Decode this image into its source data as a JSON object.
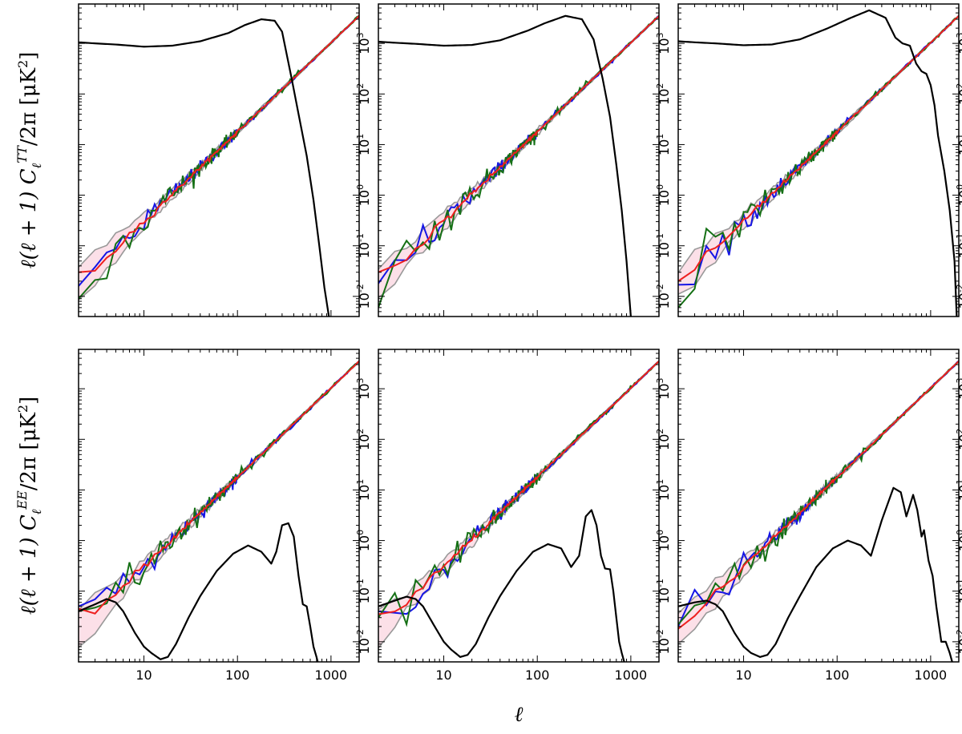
{
  "chart_data": {
    "type": "line",
    "layout": "2x3 grid",
    "xscale": "log",
    "yscale": "log",
    "xlim": [
      2,
      2000
    ],
    "ylim": [
      0.004,
      6000
    ],
    "xlabel": "ℓ",
    "x_ticks": [
      "10",
      "100",
      "1000"
    ],
    "y_ticks": [
      "10-2",
      "10-1",
      "100",
      "101",
      "102",
      "103"
    ],
    "y_tick_values": [
      0.01,
      0.1,
      1,
      10,
      100,
      1000
    ],
    "rows": [
      {
        "ylabel": "ℓ(ℓ+1) C_ℓ^TT / 2π [μK²]",
        "ylabel_parts": {
          "pre": "ℓ(ℓ + 1) C",
          "sub": "ℓ",
          "sup": "TT",
          "post": "/2π [μK",
          "exp": "2",
          "close": "]"
        }
      },
      {
        "ylabel": "ℓ(ℓ+1) C_ℓ^EE / 2π [μK²]",
        "ylabel_parts": {
          "pre": "ℓ(ℓ + 1) C",
          "sub": "ℓ",
          "sup": "EE",
          "post": "/2π [μK",
          "exp": "2",
          "close": "]"
        }
      }
    ],
    "noise_power_law": {
      "amplitude_at_l2": 0.018,
      "amplitude_at_l2000": 3500
    },
    "series_colors": {
      "blue": "#1515e6",
      "green": "#157015",
      "red": "#ee2020",
      "gray": "#999999",
      "black": "#000000",
      "band": "#fbd6e0"
    },
    "panels": [
      {
        "black_curve": {
          "x": [
            2,
            3,
            5,
            10,
            20,
            40,
            80,
            120,
            180,
            250,
            300,
            380,
            450,
            550,
            650,
            750,
            850,
            950
          ],
          "y": [
            1050,
            1000,
            950,
            860,
            900,
            1100,
            1600,
            2300,
            3000,
            2800,
            1700,
            200,
            40,
            6,
            0.8,
            0.1,
            0.015,
            0.004
          ]
        },
        "low_l_start": [
          0.016,
          0.03,
          0.009
        ]
      },
      {
        "black_curve": {
          "x": [
            2,
            3,
            5,
            10,
            20,
            40,
            80,
            120,
            200,
            300,
            400,
            500,
            600,
            700,
            800,
            900,
            1000
          ],
          "y": [
            1080,
            1030,
            980,
            900,
            930,
            1150,
            1800,
            2500,
            3500,
            3000,
            1200,
            200,
            35,
            4,
            0.5,
            0.05,
            0.004
          ]
        },
        "low_l_start": [
          0.018,
          0.03,
          0.006
        ]
      },
      {
        "black_curve": {
          "x": [
            2,
            3,
            5,
            10,
            20,
            40,
            80,
            140,
            220,
            330,
            420,
            500,
            600,
            700,
            800,
            900,
            1000,
            1100,
            1200,
            1400,
            1600,
            1800,
            1900
          ],
          "y": [
            1100,
            1050,
            1000,
            920,
            950,
            1200,
            2000,
            3200,
            4500,
            3200,
            1300,
            1000,
            900,
            400,
            280,
            250,
            150,
            60,
            15,
            3,
            0.5,
            0.05,
            0.004
          ]
        },
        "low_l_start": [
          0.017,
          0.02,
          0.006
        ]
      },
      {
        "black_curve": {
          "x": [
            2,
            3,
            4,
            5,
            6,
            8,
            10,
            12,
            15,
            18,
            22,
            30,
            40,
            60,
            90,
            130,
            180,
            230,
            260,
            300,
            350,
            400,
            450,
            500,
            550,
            600,
            650,
            700,
            750
          ],
          "y": [
            0.04,
            0.055,
            0.07,
            0.06,
            0.04,
            0.015,
            0.008,
            0.006,
            0.0045,
            0.005,
            0.009,
            0.03,
            0.08,
            0.25,
            0.55,
            0.8,
            0.6,
            0.35,
            0.6,
            2.0,
            2.2,
            1.2,
            0.2,
            0.055,
            0.05,
            0.02,
            0.008,
            0.005,
            0.003
          ]
        },
        "low_l_start": [
          0.05,
          0.045,
          0.04
        ]
      },
      {
        "black_curve": {
          "x": [
            2,
            3,
            4,
            5,
            6,
            8,
            10,
            12,
            15,
            18,
            22,
            30,
            40,
            60,
            90,
            130,
            180,
            230,
            280,
            330,
            380,
            430,
            480,
            530,
            600,
            650,
            700,
            750,
            800,
            850
          ],
          "y": [
            0.05,
            0.065,
            0.078,
            0.07,
            0.05,
            0.02,
            0.01,
            0.007,
            0.005,
            0.0055,
            0.009,
            0.03,
            0.08,
            0.25,
            0.6,
            0.85,
            0.7,
            0.3,
            0.5,
            3.0,
            4.0,
            2.0,
            0.5,
            0.28,
            0.27,
            0.1,
            0.03,
            0.01,
            0.006,
            0.004
          ]
        },
        "low_l_start": [
          0.04,
          0.035,
          0.03
        ]
      },
      {
        "black_curve": {
          "x": [
            2,
            3,
            4,
            5,
            6,
            8,
            10,
            12,
            15,
            18,
            22,
            30,
            40,
            60,
            90,
            130,
            180,
            230,
            300,
            400,
            480,
            550,
            650,
            720,
            800,
            850,
            950,
            1050,
            1150,
            1300,
            1450,
            1600,
            1700
          ],
          "y": [
            0.05,
            0.06,
            0.065,
            0.055,
            0.04,
            0.015,
            0.008,
            0.006,
            0.005,
            0.0055,
            0.009,
            0.03,
            0.08,
            0.3,
            0.7,
            1.0,
            0.8,
            0.5,
            2.5,
            11,
            9,
            3,
            8,
            4,
            1.2,
            1.6,
            0.4,
            0.2,
            0.05,
            0.01,
            0.01,
            0.006,
            0.004
          ]
        },
        "low_l_start": [
          0.02,
          0.018,
          0.022
        ]
      }
    ]
  }
}
